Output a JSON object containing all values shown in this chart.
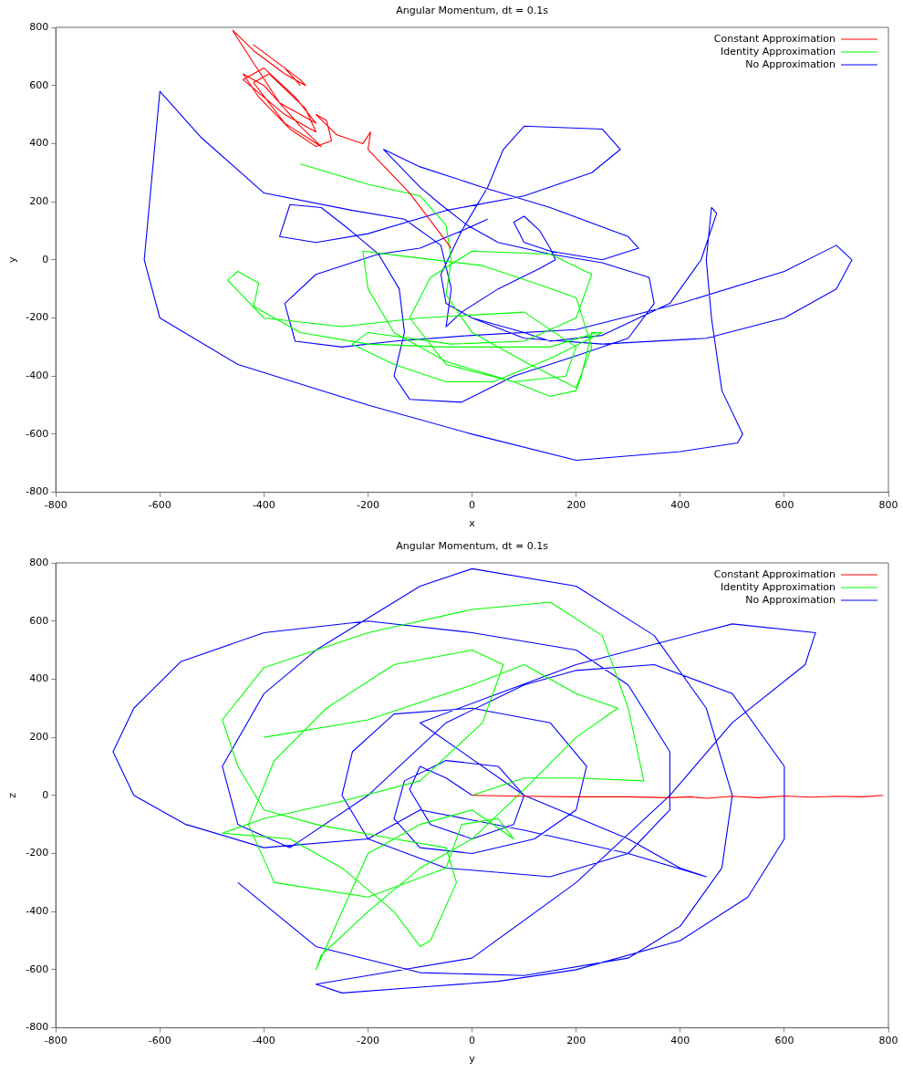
{
  "chart_data": [
    {
      "type": "line",
      "title": "Angular Momentum, dt = 0.1s",
      "xlabel": "x",
      "ylabel": "y",
      "xlim": [
        -800,
        800
      ],
      "ylim": [
        -800,
        800
      ],
      "xticks": [
        -800,
        -600,
        -400,
        -200,
        0,
        200,
        400,
        600,
        800
      ],
      "yticks": [
        -800,
        -600,
        -400,
        -200,
        0,
        200,
        400,
        600,
        800
      ],
      "grid": false,
      "legend": "top right",
      "marker": "none",
      "series": [
        {
          "name": "Constant Approximation",
          "color": "#ff0000",
          "x": [
            -40,
            -120,
            -200,
            -195,
            -210,
            -260,
            -300,
            -280,
            -270,
            -300,
            -350,
            -410,
            -440,
            -400,
            -330,
            -290,
            -360,
            -420,
            -390,
            -320,
            -300,
            -360,
            -440,
            -400,
            -340,
            -300,
            -370,
            -450,
            -460,
            -420,
            -360,
            -320,
            -330,
            -390,
            -420,
            -360,
            -330
          ],
          "values": [
            40,
            230,
            380,
            440,
            400,
            430,
            500,
            480,
            410,
            390,
            450,
            560,
            640,
            600,
            460,
            390,
            470,
            610,
            640,
            520,
            440,
            500,
            620,
            660,
            560,
            470,
            540,
            760,
            790,
            720,
            640,
            600,
            620,
            700,
            740,
            660,
            600
          ]
        },
        {
          "name": "Identity Approximation",
          "color": "#00ff00",
          "x": [
            -330,
            -200,
            -100,
            -50,
            -40,
            -50,
            0,
            100,
            200,
            230,
            200,
            120,
            20,
            -120,
            -210,
            -200,
            -150,
            -50,
            80,
            150,
            200,
            210,
            230,
            250,
            150,
            40,
            -50,
            -150,
            -230,
            -200,
            -40,
            100,
            200,
            230,
            150,
            0,
            -80,
            -120,
            -50,
            80,
            180,
            200,
            100,
            -100,
            -250,
            -400,
            -470,
            -450,
            -410,
            -420,
            -330,
            -200,
            -50,
            150,
            240
          ],
          "values": [
            330,
            260,
            220,
            120,
            0,
            -120,
            -250,
            -350,
            -440,
            -300,
            -130,
            -80,
            -20,
            10,
            30,
            -100,
            -250,
            -350,
            -420,
            -470,
            -450,
            -400,
            -250,
            -250,
            -340,
            -420,
            -420,
            -360,
            -290,
            -250,
            -290,
            -280,
            -200,
            -50,
            20,
            30,
            -60,
            -200,
            -360,
            -420,
            -400,
            -300,
            -180,
            -200,
            -230,
            -200,
            -70,
            -40,
            -80,
            -160,
            -250,
            -290,
            -300,
            -300,
            -250
          ]
        },
        {
          "name": "No Approximation",
          "color": "#0000ff",
          "x": [
            30,
            -20,
            -100,
            -180,
            -300,
            -360,
            -340,
            -250,
            -150,
            0,
            200,
            400,
            600,
            700,
            730,
            700,
            600,
            450,
            250,
            100,
            0,
            -50,
            -60,
            -20,
            30,
            60,
            100,
            250,
            285,
            230,
            100,
            -50,
            -200,
            -300,
            -370,
            -350,
            -290,
            -240,
            -180,
            -140,
            -130,
            -150,
            -120,
            -20,
            80,
            200,
            300,
            350,
            340,
            250,
            150,
            50,
            -10,
            -60,
            -100,
            -170,
            -100,
            20,
            150,
            300,
            320,
            250,
            150,
            100,
            80,
            100,
            130,
            150,
            160,
            130,
            50,
            -20,
            -50,
            -40,
            -60,
            -130,
            -230,
            -400,
            -520,
            -600,
            -630,
            -600,
            -450,
            -200,
            0,
            200,
            400,
            510,
            520,
            480,
            460,
            450,
            460,
            470,
            440,
            380,
            250,
            150,
            100,
            0
          ],
          "values": [
            140,
            100,
            40,
            20,
            -50,
            -150,
            -280,
            -300,
            -280,
            -260,
            -240,
            -150,
            -40,
            50,
            0,
            -100,
            -200,
            -270,
            -290,
            -270,
            -200,
            -150,
            -50,
            100,
            250,
            380,
            460,
            450,
            380,
            300,
            220,
            170,
            90,
            60,
            80,
            190,
            180,
            110,
            20,
            -100,
            -250,
            -400,
            -480,
            -490,
            -400,
            -330,
            -270,
            -150,
            -60,
            -10,
            20,
            60,
            120,
            190,
            250,
            380,
            320,
            250,
            180,
            80,
            40,
            0,
            30,
            60,
            130,
            150,
            100,
            40,
            0,
            -30,
            -100,
            -180,
            -230,
            -100,
            50,
            140,
            170,
            230,
            420,
            580,
            0,
            -200,
            -360,
            -500,
            -600,
            -690,
            -660,
            -630,
            -600,
            -450,
            -200,
            0,
            180,
            160,
            0,
            -150,
            -260,
            -280,
            -250,
            -200
          ]
        }
      ]
    },
    {
      "type": "line",
      "title": "Angular Momentum, dt = 0.1s",
      "xlabel": "y",
      "ylabel": "z",
      "xlim": [
        -800,
        800
      ],
      "ylim": [
        -800,
        800
      ],
      "xticks": [
        -800,
        -600,
        -400,
        -200,
        0,
        200,
        400,
        600,
        800
      ],
      "yticks": [
        -800,
        -600,
        -400,
        -200,
        0,
        200,
        400,
        600,
        800
      ],
      "grid": false,
      "legend": "top right",
      "marker": "none",
      "series": [
        {
          "name": "Constant Approximation",
          "color": "#ff0000",
          "x": [
            0,
            100,
            200,
            300,
            380,
            420,
            450,
            500,
            550,
            600,
            650,
            700,
            750,
            790
          ],
          "values": [
            0,
            -3,
            -5,
            -5,
            -8,
            -5,
            -10,
            -3,
            -8,
            -2,
            -6,
            -3,
            -5,
            0
          ]
        },
        {
          "name": "Identity Approximation",
          "color": "#00ff00",
          "x": [
            0,
            100,
            200,
            330,
            300,
            250,
            150,
            0,
            -200,
            -400,
            -480,
            -450,
            -400,
            -300,
            -150,
            -50,
            -30,
            -80,
            -100,
            -150,
            -250,
            -350,
            -480,
            -400,
            -250,
            -100,
            20,
            60,
            0,
            -150,
            -280,
            -380,
            -430,
            -380,
            -200,
            -50,
            -20,
            50,
            80,
            0,
            -100,
            -200,
            -300,
            -290,
            -200,
            -100,
            0,
            100,
            200,
            280,
            200,
            100,
            0,
            -200,
            -400
          ],
          "values": [
            0,
            60,
            60,
            50,
            300,
            550,
            665,
            640,
            560,
            440,
            260,
            100,
            -50,
            -100,
            -150,
            -180,
            -300,
            -500,
            -520,
            -400,
            -250,
            -150,
            -130,
            -80,
            -20,
            50,
            250,
            450,
            500,
            450,
            300,
            120,
            -100,
            -300,
            -350,
            -250,
            -100,
            -80,
            -150,
            -50,
            -100,
            -200,
            -600,
            -550,
            -400,
            -250,
            -150,
            20,
            200,
            300,
            350,
            450,
            380,
            260,
            200
          ]
        },
        {
          "name": "No Approximation",
          "color": "#0000ff",
          "x": [
            0,
            -50,
            -100,
            -120,
            -80,
            0,
            80,
            100,
            50,
            -50,
            -130,
            -150,
            -100,
            0,
            120,
            200,
            220,
            150,
            0,
            -150,
            -230,
            -250,
            -200,
            -50,
            150,
            300,
            380,
            380,
            300,
            200,
            0,
            -200,
            -400,
            -560,
            -650,
            -690,
            -650,
            -550,
            -400,
            -200,
            -100,
            100,
            300,
            450,
            400,
            300,
            100,
            -100,
            200,
            500,
            660,
            640,
            500,
            380,
            200,
            0,
            -200,
            -300,
            -250,
            -100,
            50,
            200,
            400,
            530,
            600,
            600,
            500,
            350,
            200,
            100,
            -50,
            -200,
            -350,
            -450,
            -480,
            -400,
            -300,
            -100,
            0,
            200,
            350,
            450,
            500,
            480,
            400,
            300,
            100,
            -100,
            -300,
            -450
          ],
          "values": [
            0,
            60,
            100,
            20,
            -100,
            -150,
            -100,
            0,
            100,
            120,
            50,
            -80,
            -180,
            -200,
            -150,
            -50,
            100,
            250,
            300,
            280,
            150,
            0,
            -150,
            -250,
            -280,
            -200,
            -50,
            150,
            380,
            500,
            560,
            600,
            560,
            460,
            300,
            150,
            0,
            -100,
            -180,
            -150,
            -50,
            -120,
            -200,
            -280,
            -250,
            -150,
            0,
            250,
            450,
            590,
            560,
            450,
            250,
            0,
            -300,
            -560,
            -620,
            -650,
            -680,
            -660,
            -640,
            -600,
            -500,
            -350,
            -150,
            100,
            350,
            450,
            430,
            380,
            250,
            0,
            -180,
            -100,
            100,
            350,
            500,
            720,
            780,
            720,
            550,
            300,
            0,
            -250,
            -450,
            -560,
            -620,
            -610,
            -520,
            -300
          ]
        }
      ]
    }
  ]
}
